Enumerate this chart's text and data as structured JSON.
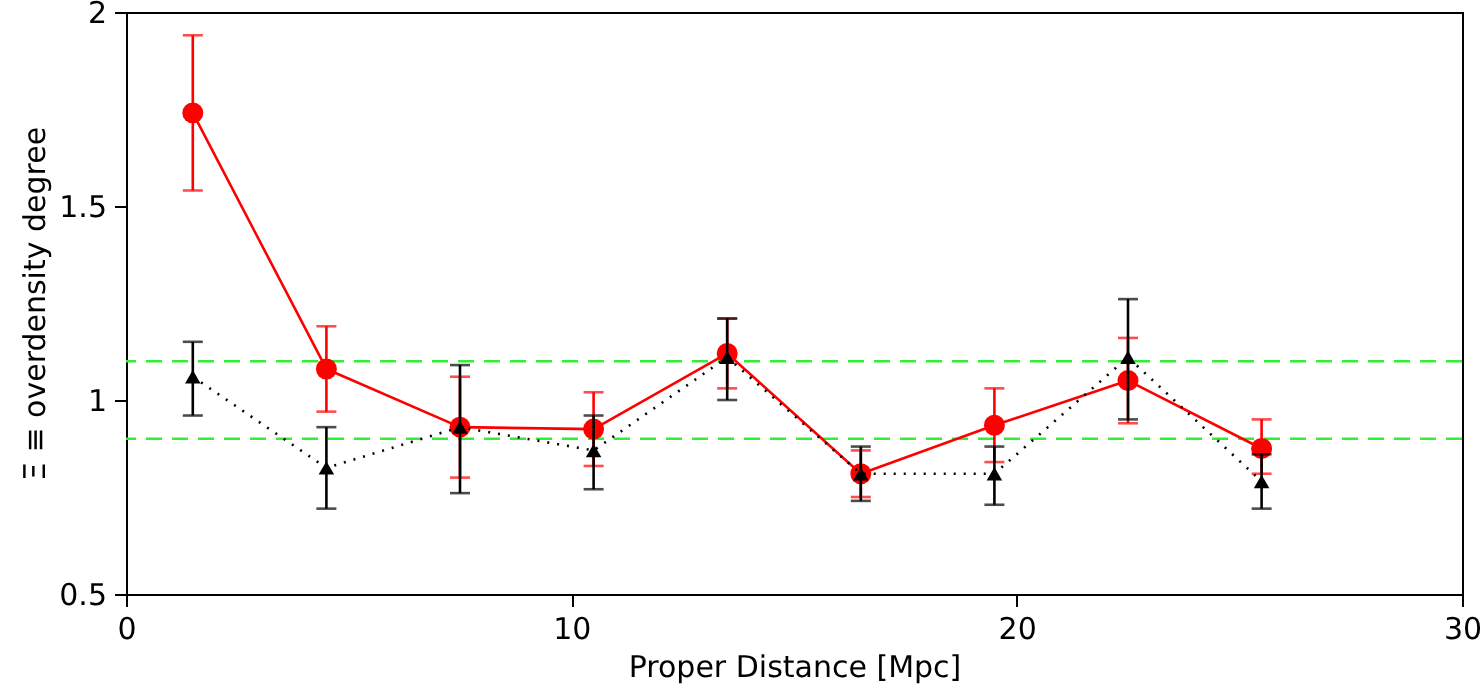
{
  "chart_data": {
    "type": "line",
    "xlabel": "Proper Distance [Mpc]",
    "ylabel": "Ξ ≡ overdensity degree",
    "x": [
      1.5,
      4.5,
      7.5,
      10.5,
      13.5,
      16.5,
      19.5,
      22.5,
      25.5
    ],
    "series": [
      {
        "color": "#ff0000",
        "marker": "circle",
        "line_style": "solid",
        "values": [
          1.74,
          1.08,
          0.93,
          0.925,
          1.12,
          0.81,
          0.935,
          1.05,
          0.875
        ],
        "errors": [
          [
            1.54,
            1.94
          ],
          [
            0.97,
            1.19
          ],
          [
            0.8,
            1.06
          ],
          [
            0.83,
            1.02
          ],
          [
            1.03,
            1.21
          ],
          [
            0.75,
            0.87
          ],
          [
            0.84,
            1.03
          ],
          [
            0.94,
            1.16
          ],
          [
            0.81,
            0.95
          ]
        ]
      },
      {
        "color": "#000000",
        "marker": "triangle",
        "line_style": "dotted",
        "values": [
          1.06,
          0.825,
          0.93,
          0.87,
          1.11,
          0.81,
          0.81,
          1.11,
          0.79
        ],
        "errors": [
          [
            0.96,
            1.15
          ],
          [
            0.72,
            0.93
          ],
          [
            0.76,
            1.09
          ],
          [
            0.77,
            0.96
          ],
          [
            1.0,
            1.21
          ],
          [
            0.74,
            0.88
          ],
          [
            0.73,
            0.88
          ],
          [
            0.95,
            1.26
          ],
          [
            0.72,
            0.86
          ]
        ]
      }
    ],
    "xlim": [
      0,
      30
    ],
    "xticks": [
      0,
      10,
      20,
      30
    ],
    "ylim": [
      0.5,
      2
    ],
    "yticks": [
      0.5,
      1,
      1.5,
      2
    ],
    "ref_lines": [
      {
        "axis": "y",
        "value": 0.9,
        "color": "#33ee33",
        "line_style": "dashed"
      },
      {
        "axis": "y",
        "value": 1.1,
        "color": "#33ee33",
        "line_style": "dashed"
      }
    ],
    "grid": false
  }
}
